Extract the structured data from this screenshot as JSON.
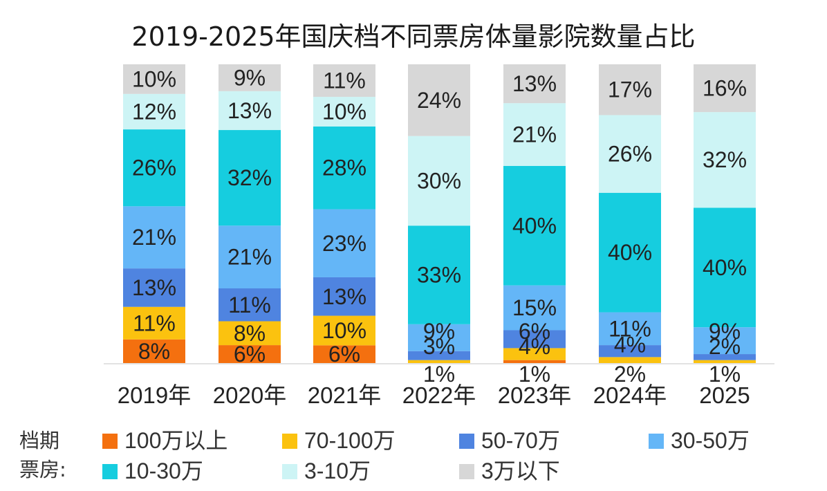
{
  "chart_data": {
    "type": "bar",
    "stacked": true,
    "title": "2019-2025年国庆档不同票房体量影院数量占比",
    "xlabel": "",
    "ylabel": "",
    "ylim": [
      0,
      100
    ],
    "grid": false,
    "categories": [
      "2019年",
      "2020年",
      "2021年",
      "2022年",
      "2023年",
      "2024年",
      "2025"
    ],
    "legend_title": "档期\n票房:",
    "legend_placement": "bottom",
    "series": [
      {
        "name": "100万以上",
        "color": "#f4700f",
        "values": [
          8,
          6,
          6,
          0,
          1,
          0,
          0
        ],
        "labels": [
          "8%",
          "6%",
          "6%",
          "",
          "1%",
          "",
          ""
        ]
      },
      {
        "name": "70-100万",
        "color": "#fbc20f",
        "values": [
          11,
          8,
          10,
          1,
          4,
          2,
          1
        ],
        "labels": [
          "11%",
          "8%",
          "10%",
          "1%",
          "4%",
          "2%",
          "1%"
        ]
      },
      {
        "name": "50-70万",
        "color": "#4f84e0",
        "values": [
          13,
          11,
          13,
          3,
          6,
          4,
          2
        ],
        "labels": [
          "13%",
          "11%",
          "13%",
          "3%",
          "6%",
          "4%",
          "2%"
        ]
      },
      {
        "name": "30-50万",
        "color": "#64b6f7",
        "values": [
          21,
          21,
          23,
          9,
          15,
          11,
          9
        ],
        "labels": [
          "21%",
          "21%",
          "23%",
          "9%",
          "15%",
          "11%",
          "9%"
        ]
      },
      {
        "name": "10-30万",
        "color": "#16cddf",
        "values": [
          26,
          32,
          28,
          33,
          40,
          40,
          40
        ],
        "labels": [
          "26%",
          "32%",
          "28%",
          "33%",
          "40%",
          "40%",
          "40%"
        ]
      },
      {
        "name": "3-10万",
        "color": "#cdf4f5",
        "values": [
          12,
          13,
          10,
          30,
          21,
          26,
          32
        ],
        "labels": [
          "12%",
          "13%",
          "10%",
          "30%",
          "21%",
          "26%",
          "32%"
        ]
      },
      {
        "name": "3万以下",
        "color": "#d7d7d7",
        "values": [
          10,
          9,
          11,
          24,
          13,
          17,
          16
        ],
        "labels": [
          "10%",
          "9%",
          "11%",
          "24%",
          "13%",
          "17%",
          "16%"
        ]
      }
    ]
  },
  "legend": {
    "head_line1": "档期",
    "head_line2": "票房:"
  }
}
